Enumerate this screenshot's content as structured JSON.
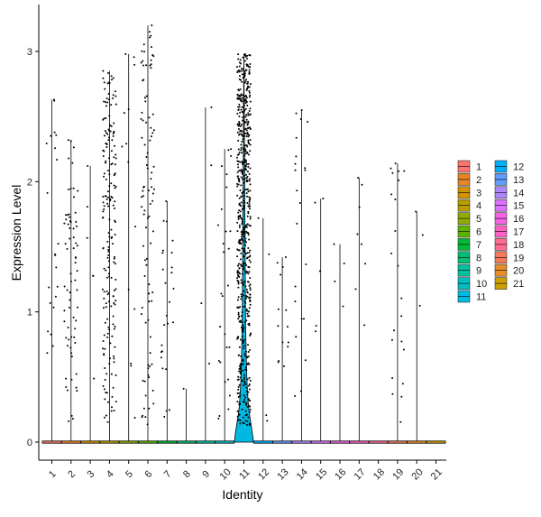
{
  "chart_data": {
    "type": "violin",
    "xlabel": "Identity",
    "ylabel": "Expression Level",
    "categories": [
      "1",
      "2",
      "3",
      "4",
      "5",
      "6",
      "7",
      "8",
      "9",
      "10",
      "11",
      "12",
      "13",
      "14",
      "15",
      "16",
      "17",
      "18",
      "19",
      "20",
      "21"
    ],
    "colors": [
      "#F8766D",
      "#E88526",
      "#D39200",
      "#B79F00",
      "#93AA00",
      "#5EB300",
      "#00BA38",
      "#00BF74",
      "#00C19F",
      "#00BFC4",
      "#00B9E3",
      "#00ADFA",
      "#619CFF",
      "#AE87FF",
      "#DB72FB",
      "#F564E3",
      "#FF61C3",
      "#FF6C91",
      "#F17B5B",
      "#E78E28",
      "#CDA000"
    ],
    "ylim": [
      -0.15,
      3.3
    ],
    "y_ticks": [
      0,
      1,
      2,
      3
    ],
    "series": [
      {
        "name": "1",
        "n_points": 22,
        "max": 2.63
      },
      {
        "name": "2",
        "n_points": 70,
        "max": 2.32
      },
      {
        "name": "3",
        "n_points": 6,
        "max": 2.12
      },
      {
        "name": "4",
        "n_points": 190,
        "max": 2.85
      },
      {
        "name": "5",
        "n_points": 14,
        "max": 2.98
      },
      {
        "name": "6",
        "n_points": 95,
        "max": 3.2
      },
      {
        "name": "7",
        "n_points": 26,
        "max": 1.85
      },
      {
        "name": "8",
        "n_points": 1,
        "max": 0.41
      },
      {
        "name": "9",
        "n_points": 4,
        "max": 2.57
      },
      {
        "name": "10",
        "n_points": 28,
        "max": 2.25
      },
      {
        "name": "11",
        "n_points": 650,
        "max": 2.98
      },
      {
        "name": "12",
        "n_points": 4,
        "max": 1.72
      },
      {
        "name": "13",
        "n_points": 14,
        "max": 1.42
      },
      {
        "name": "14",
        "n_points": 22,
        "max": 2.55
      },
      {
        "name": "15",
        "n_points": 5,
        "max": 1.87
      },
      {
        "name": "16",
        "n_points": 4,
        "max": 1.52
      },
      {
        "name": "17",
        "n_points": 8,
        "max": 2.03
      },
      {
        "name": "18",
        "n_points": 0,
        "max": 0
      },
      {
        "name": "19",
        "n_points": 22,
        "max": 2.14
      },
      {
        "name": "20",
        "n_points": 3,
        "max": 1.77
      },
      {
        "name": "21",
        "n_points": 0,
        "max": 0
      }
    ],
    "legend": {
      "position": "right",
      "entries": [
        "1",
        "2",
        "3",
        "4",
        "5",
        "6",
        "7",
        "8",
        "9",
        "10",
        "11",
        "12",
        "13",
        "14",
        "15",
        "16",
        "17",
        "18",
        "19",
        "20",
        "21"
      ]
    },
    "grid": false
  }
}
